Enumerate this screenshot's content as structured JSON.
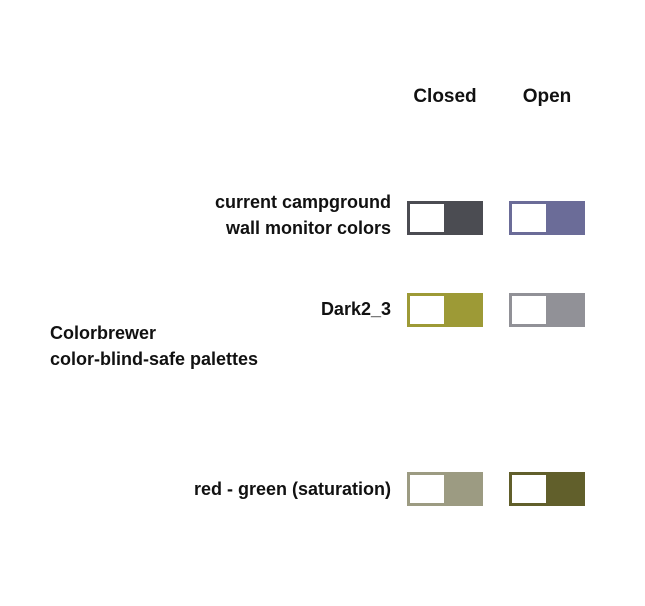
{
  "columns": {
    "closed": "Closed",
    "open": "Open"
  },
  "group_label": {
    "line1": "Colorbrewer",
    "line2": "color-blind-safe palettes"
  },
  "rows": [
    {
      "label_line1": "current campground",
      "label_line2": "wall monitor colors",
      "closed_color": "#4b4c52",
      "open_color": "#6b6c98"
    },
    {
      "label_line1": "Dark2_3",
      "label_line2": "",
      "closed_color": "#9d9a36",
      "open_color": "#919197"
    },
    {
      "label_line1": "red - green (saturation)",
      "label_line2": "",
      "closed_color": "#9c9b82",
      "open_color": "#615f2b"
    }
  ]
}
